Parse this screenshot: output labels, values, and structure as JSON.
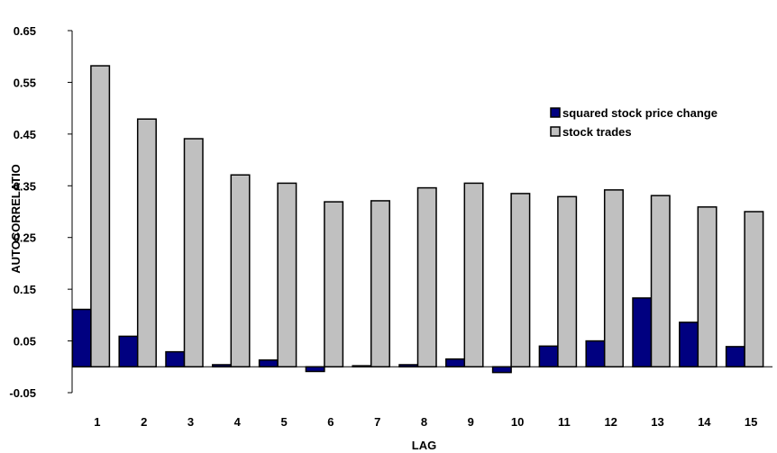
{
  "chart_data": {
    "type": "bar",
    "xlabel": "LAG",
    "ylabel": "AUTOCORRELATIO",
    "ylim": [
      -0.05,
      0.65
    ],
    "yticks": [
      "0.65",
      "0.55",
      "0.45",
      "0.35",
      "0.25",
      "0.15",
      "0.05",
      "-0.05"
    ],
    "categories": [
      "1",
      "2",
      "3",
      "4",
      "5",
      "6",
      "7",
      "8",
      "9",
      "10",
      "11",
      "12",
      "13",
      "14",
      "15"
    ],
    "legend_position": "right",
    "grid": false,
    "series": [
      {
        "name": "squared stock price change",
        "color": "#000080",
        "values": [
          0.111,
          0.059,
          0.029,
          0.004,
          0.013,
          -0.009,
          0.002,
          0.004,
          0.015,
          -0.011,
          0.04,
          0.05,
          0.133,
          0.086,
          0.039
        ]
      },
      {
        "name": "stock trades",
        "color": "#c0c0c0",
        "values": [
          0.582,
          0.479,
          0.441,
          0.371,
          0.355,
          0.319,
          0.321,
          0.346,
          0.355,
          0.335,
          0.329,
          0.342,
          0.331,
          0.309,
          0.3
        ]
      }
    ]
  }
}
